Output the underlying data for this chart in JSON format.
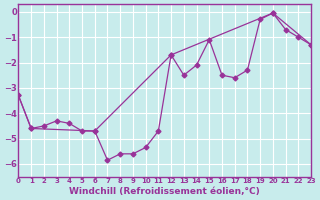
{
  "title": "",
  "xlabel": "Windchill (Refroidissement éolien,°C)",
  "background_color": "#c8ecec",
  "line_color": "#993399",
  "grid_color": "#ffffff",
  "xlim": [
    0,
    23
  ],
  "ylim": [
    -6.5,
    0.3
  ],
  "yticks": [
    0,
    -1,
    -2,
    -3,
    -4,
    -5,
    -6
  ],
  "xticks": [
    0,
    1,
    2,
    3,
    4,
    5,
    6,
    7,
    8,
    9,
    10,
    11,
    12,
    13,
    14,
    15,
    16,
    17,
    18,
    19,
    20,
    21,
    22,
    23
  ],
  "line1_x": [
    0,
    1,
    2,
    3,
    4,
    5,
    6,
    7,
    8,
    9,
    10,
    11,
    12,
    13,
    14,
    15,
    16,
    17,
    18,
    19,
    20,
    21,
    22,
    23
  ],
  "line1_y": [
    -3.3,
    -4.6,
    -4.5,
    -4.3,
    -4.4,
    -4.7,
    -4.7,
    -5.85,
    -5.6,
    -5.6,
    -5.35,
    -4.7,
    -1.7,
    -2.5,
    -2.1,
    -1.1,
    -2.5,
    -2.6,
    -2.3,
    -0.3,
    -0.05,
    -0.7,
    -1.0,
    -1.3
  ],
  "line2_x": [
    0,
    1,
    6,
    12,
    20,
    23
  ],
  "line2_y": [
    -3.3,
    -4.6,
    -4.7,
    -1.7,
    -0.05,
    -1.3
  ]
}
